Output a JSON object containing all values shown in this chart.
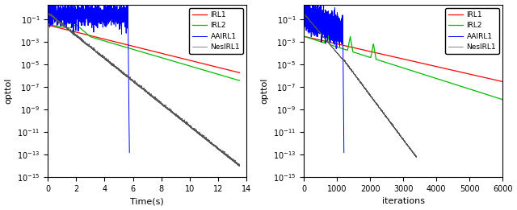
{
  "xlabel_left": "Time(s)",
  "xlabel_right": "iterations",
  "ylabel": "opttol",
  "xlim_left": [
    0,
    14
  ],
  "xlim_right": [
    0,
    6000
  ],
  "ylim": [
    1e-15,
    2.0
  ],
  "xticks_left": [
    0,
    2,
    4,
    6,
    8,
    10,
    12,
    14
  ],
  "xticks_right": [
    0,
    1000,
    2000,
    3000,
    4000,
    5000,
    6000
  ],
  "legend_labels": [
    "IRL1",
    "IRL2",
    "AAIRL1",
    "NesIRL1"
  ],
  "colors": {
    "IRL1": "#ff0000",
    "IRL2": "#00bb00",
    "AAIRL1": "#0000ff",
    "NesIRL1": "#555555"
  }
}
